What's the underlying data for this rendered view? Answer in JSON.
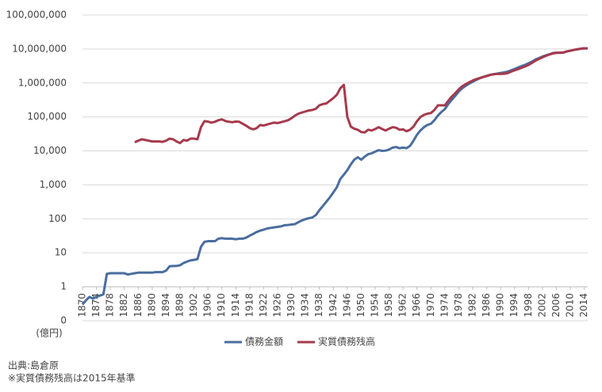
{
  "chart_data": {
    "type": "line",
    "log": true,
    "grid": true,
    "legend": "bottom",
    "y_unit_label": "(億円)",
    "notes": [
      "出典:島倉原",
      "※実質債務残高は2015年基準"
    ],
    "xlim": [
      1870,
      2015
    ],
    "xticks": [
      1870,
      1874,
      1878,
      1882,
      1886,
      1890,
      1894,
      1898,
      1902,
      1906,
      1910,
      1914,
      1918,
      1922,
      1926,
      1930,
      1934,
      1938,
      1942,
      1946,
      1950,
      1954,
      1958,
      1962,
      1966,
      1970,
      1974,
      1978,
      1982,
      1986,
      1990,
      1994,
      1998,
      2002,
      2006,
      2010,
      2014
    ],
    "ylim": [
      0.1,
      100000000
    ],
    "yticks": [
      {
        "value": 0.1,
        "label": "0"
      },
      1,
      10,
      100,
      {
        "value": 1000,
        "label": "1,000"
      },
      {
        "value": 10000,
        "label": "10,000"
      },
      {
        "value": 100000,
        "label": "100,000"
      },
      {
        "value": 1000000,
        "label": "1,000,000"
      },
      {
        "value": 10000000,
        "label": "10,000,000"
      },
      {
        "value": 100000000,
        "label": "100,000,000"
      }
    ],
    "x": [
      1870,
      1871,
      1872,
      1873,
      1874,
      1875,
      1876,
      1877,
      1878,
      1879,
      1880,
      1881,
      1882,
      1883,
      1884,
      1885,
      1886,
      1887,
      1888,
      1889,
      1890,
      1891,
      1892,
      1893,
      1894,
      1895,
      1896,
      1897,
      1898,
      1899,
      1900,
      1901,
      1902,
      1903,
      1904,
      1905,
      1906,
      1907,
      1908,
      1909,
      1910,
      1911,
      1912,
      1913,
      1914,
      1915,
      1916,
      1917,
      1918,
      1919,
      1920,
      1921,
      1922,
      1923,
      1924,
      1925,
      1926,
      1927,
      1928,
      1929,
      1930,
      1931,
      1932,
      1933,
      1934,
      1935,
      1936,
      1937,
      1938,
      1939,
      1940,
      1941,
      1942,
      1943,
      1944,
      1945,
      1946,
      1947,
      1948,
      1949,
      1950,
      1951,
      1952,
      1953,
      1954,
      1955,
      1956,
      1957,
      1958,
      1959,
      1960,
      1961,
      1962,
      1963,
      1964,
      1965,
      1966,
      1967,
      1968,
      1969,
      1970,
      1971,
      1972,
      1973,
      1974,
      1975,
      1976,
      1977,
      1978,
      1979,
      1980,
      1981,
      1982,
      1983,
      1984,
      1985,
      1986,
      1987,
      1988,
      1989,
      1990,
      1991,
      1992,
      1993,
      1994,
      1995,
      1996,
      1997,
      1998,
      1999,
      2000,
      2001,
      2002,
      2003,
      2004,
      2005,
      2006,
      2007,
      2008,
      2009,
      2010,
      2011,
      2012,
      2013,
      2014,
      2015
    ],
    "series": [
      {
        "name": "債務金額",
        "color": "#4a6d9e",
        "values": [
          0.3,
          0.4,
          0.5,
          0.45,
          0.5,
          0.55,
          0.6,
          2.4,
          2.5,
          2.5,
          2.5,
          2.5,
          2.5,
          2.3,
          2.4,
          2.5,
          2.6,
          2.6,
          2.6,
          2.6,
          2.6,
          2.7,
          2.7,
          2.7,
          3.0,
          4.0,
          4.1,
          4.1,
          4.3,
          5.0,
          5.5,
          6,
          6.2,
          6.5,
          15,
          21,
          22,
          22,
          22,
          26,
          27,
          26,
          26,
          26,
          25,
          26,
          26,
          28,
          32,
          36,
          41,
          45,
          48,
          52,
          54,
          56,
          58,
          60,
          65,
          66,
          68,
          70,
          80,
          90,
          98,
          105,
          110,
          130,
          180,
          240,
          320,
          430,
          600,
          850,
          1500,
          2000,
          2700,
          4000,
          5500,
          6500,
          5500,
          6800,
          8000,
          8500,
          9500,
          10500,
          10000,
          10200,
          11000,
          12500,
          13000,
          12000,
          12500,
          12000,
          14000,
          20000,
          30000,
          40000,
          50000,
          58000,
          63000,
          80000,
          110000,
          140000,
          170000,
          240000,
          320000,
          420000,
          560000,
          700000,
          830000,
          960000,
          1090000,
          1230000,
          1370000,
          1500000,
          1620000,
          1740000,
          1820000,
          1880000,
          1970000,
          2040000,
          2150000,
          2360000,
          2580000,
          2850000,
          3140000,
          3400000,
          3800000,
          4250000,
          4900000,
          5400000,
          6000000,
          6500000,
          7000000,
          7600000,
          7800000,
          7700000,
          7800000,
          8500000,
          8900000,
          9400000,
          9800000,
          10200000,
          10500000,
          10400000
        ]
      },
      {
        "name": "実質債務残高",
        "color": "#a63a4d",
        "values": [
          null,
          null,
          null,
          null,
          null,
          null,
          null,
          null,
          null,
          null,
          null,
          null,
          null,
          null,
          null,
          18000,
          20000,
          22000,
          21000,
          20000,
          19000,
          19000,
          19000,
          18500,
          20000,
          23000,
          22000,
          19000,
          17000,
          21000,
          20000,
          23000,
          23000,
          22000,
          50000,
          75000,
          73000,
          68000,
          72000,
          80000,
          85000,
          76000,
          72000,
          70000,
          73000,
          72000,
          63000,
          55000,
          47000,
          43000,
          47000,
          58000,
          56000,
          60000,
          64000,
          68000,
          66000,
          70000,
          75000,
          80000,
          92000,
          110000,
          125000,
          135000,
          145000,
          155000,
          160000,
          175000,
          220000,
          240000,
          250000,
          300000,
          360000,
          450000,
          700000,
          880000,
          100000,
          52000,
          45000,
          42000,
          36000,
          35000,
          42000,
          40000,
          44000,
          50000,
          44000,
          40000,
          45000,
          50000,
          48000,
          42000,
          43000,
          38000,
          42000,
          52000,
          75000,
          100000,
          115000,
          125000,
          130000,
          160000,
          220000,
          220000,
          220000,
          300000,
          400000,
          500000,
          650000,
          800000,
          920000,
          1050000,
          1180000,
          1300000,
          1400000,
          1500000,
          1600000,
          1720000,
          1800000,
          1850000,
          1850000,
          1870000,
          1950000,
          2150000,
          2350000,
          2550000,
          2800000,
          3050000,
          3400000,
          3900000,
          4500000,
          5100000,
          5700000,
          6300000,
          6900000,
          7400000,
          7700000,
          7800000,
          7900000,
          8500000,
          8900000,
          9400000,
          9800000,
          10200000,
          10500000,
          10400000
        ]
      }
    ]
  }
}
